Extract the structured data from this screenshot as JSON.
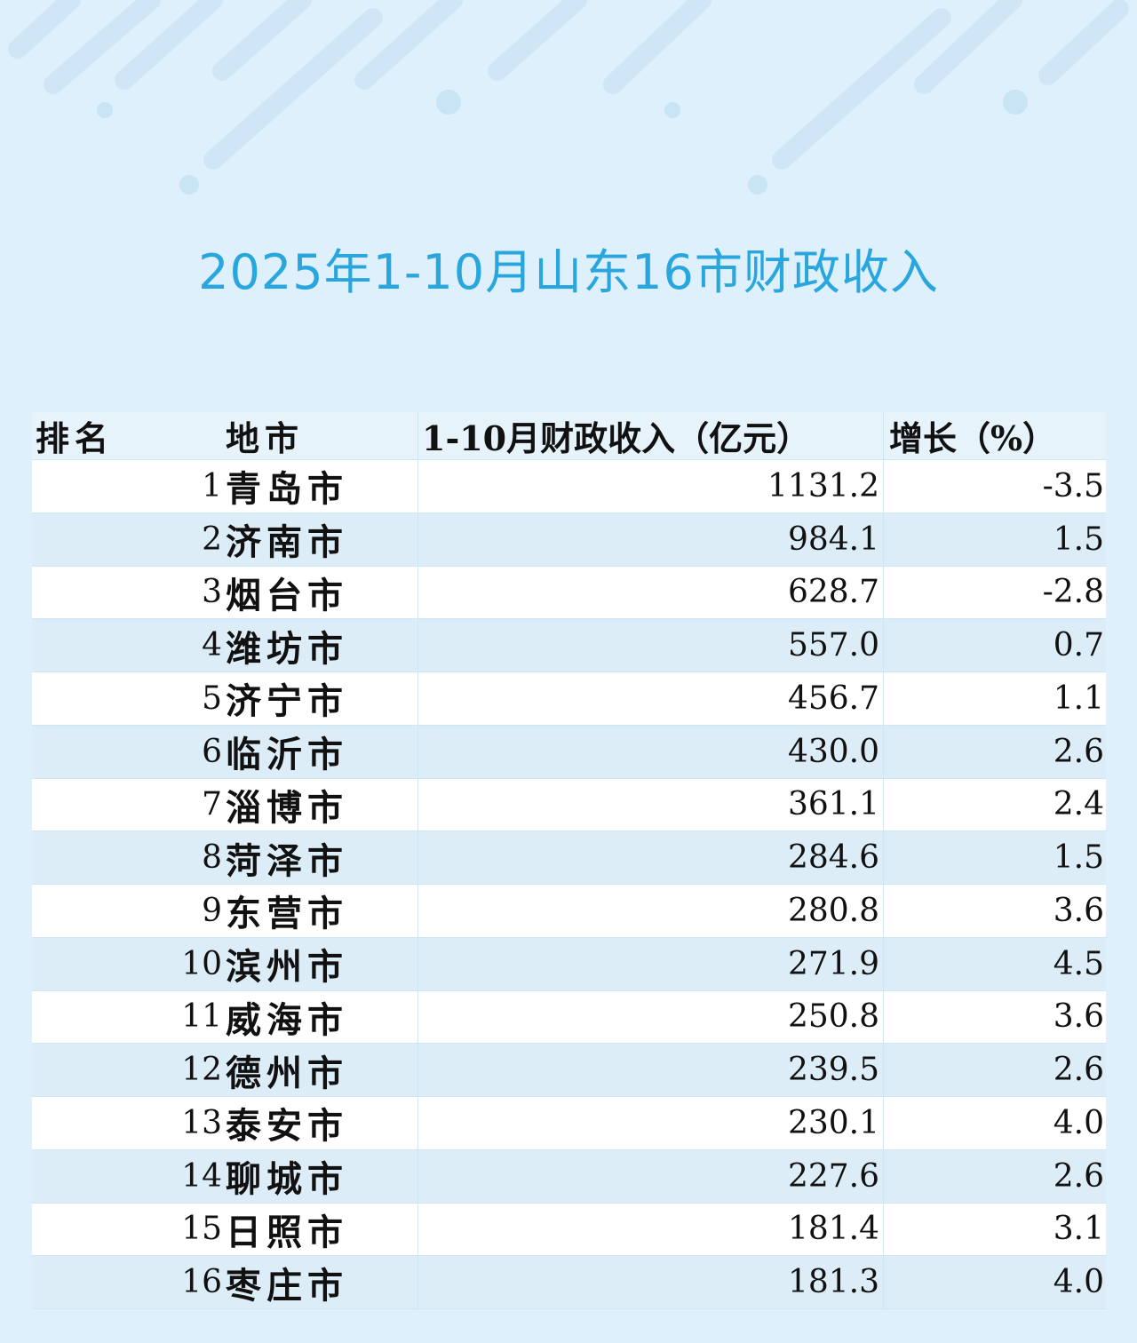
{
  "title": "2025年1-10月山东16市财政收入",
  "colors": {
    "title": "#2aa6df",
    "background": "#ddf0fb",
    "row_tint": "#dcedf8"
  },
  "chart_data": {
    "type": "table",
    "title": "2025年1-10月山东16市财政收入",
    "columns": [
      "排名",
      "地市",
      "1-10月财政收入（亿元）",
      "增长（%）"
    ],
    "rows": [
      {
        "rank": "1",
        "city": "青岛市",
        "revenue": "1131.2",
        "growth": "-3.5"
      },
      {
        "rank": "2",
        "city": "济南市",
        "revenue": "984.1",
        "growth": "1.5"
      },
      {
        "rank": "3",
        "city": "烟台市",
        "revenue": "628.7",
        "growth": "-2.8"
      },
      {
        "rank": "4",
        "city": "潍坊市",
        "revenue": "557.0",
        "growth": "0.7"
      },
      {
        "rank": "5",
        "city": "济宁市",
        "revenue": "456.7",
        "growth": "1.1"
      },
      {
        "rank": "6",
        "city": "临沂市",
        "revenue": "430.0",
        "growth": "2.6"
      },
      {
        "rank": "7",
        "city": "淄博市",
        "revenue": "361.1",
        "growth": "2.4"
      },
      {
        "rank": "8",
        "city": "菏泽市",
        "revenue": "284.6",
        "growth": "1.5"
      },
      {
        "rank": "9",
        "city": "东营市",
        "revenue": "280.8",
        "growth": "3.6"
      },
      {
        "rank": "10",
        "city": "滨州市",
        "revenue": "271.9",
        "growth": "4.5"
      },
      {
        "rank": "11",
        "city": "威海市",
        "revenue": "250.8",
        "growth": "3.6"
      },
      {
        "rank": "12",
        "city": "德州市",
        "revenue": "239.5",
        "growth": "2.6"
      },
      {
        "rank": "13",
        "city": "泰安市",
        "revenue": "230.1",
        "growth": "4.0"
      },
      {
        "rank": "14",
        "city": "聊城市",
        "revenue": "227.6",
        "growth": "2.6"
      },
      {
        "rank": "15",
        "city": "日照市",
        "revenue": "181.4",
        "growth": "3.1"
      },
      {
        "rank": "16",
        "city": "枣庄市",
        "revenue": "181.3",
        "growth": "4.0"
      }
    ]
  }
}
